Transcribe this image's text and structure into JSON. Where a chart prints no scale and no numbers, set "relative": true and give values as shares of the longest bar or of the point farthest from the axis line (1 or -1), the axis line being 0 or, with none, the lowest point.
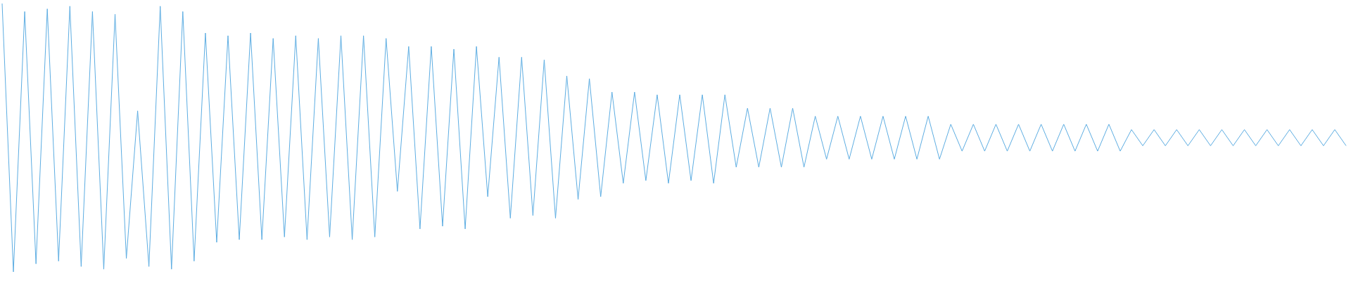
{
  "chart_data": {
    "type": "line",
    "relative": true,
    "tick_labels": false,
    "marker": "none",
    "categories": [
      null,
      null,
      null,
      null,
      null,
      null,
      null,
      null,
      null,
      null,
      null,
      null,
      null,
      null,
      null,
      null,
      null,
      null,
      null,
      null,
      null,
      null,
      null,
      null,
      null,
      null,
      null,
      null,
      null,
      null,
      null,
      null,
      null,
      null,
      null,
      null,
      null,
      null,
      null,
      null,
      null,
      null,
      null,
      null,
      null,
      null,
      null,
      null,
      null,
      null,
      null,
      null,
      null,
      null,
      null,
      null,
      null,
      null,
      null,
      null,
      null,
      null,
      null,
      null,
      null,
      null,
      null,
      null,
      null,
      null,
      null,
      null,
      null,
      null,
      null,
      null,
      null,
      null,
      null,
      null,
      null,
      null,
      null,
      null,
      null,
      null,
      null,
      null,
      null,
      null,
      null,
      null,
      null,
      null,
      null,
      null,
      null,
      null,
      null,
      null,
      null,
      null,
      null,
      null,
      null,
      null,
      null,
      null,
      null,
      null,
      null,
      null,
      null,
      null,
      null,
      null,
      null,
      null,
      null,
      null
    ],
    "series": [
      {
        "color": "#5dade2",
        "values": [
          1.0,
          0.0,
          0.97,
          0.03,
          0.98,
          0.04,
          0.99,
          0.02,
          0.97,
          0.01,
          0.96,
          0.05,
          0.6,
          0.02,
          0.99,
          0.01,
          0.97,
          0.04,
          0.89,
          0.11,
          0.88,
          0.12,
          0.89,
          0.12,
          0.87,
          0.13,
          0.88,
          0.12,
          0.87,
          0.13,
          0.88,
          0.12,
          0.88,
          0.13,
          0.87,
          0.3,
          0.84,
          0.16,
          0.84,
          0.17,
          0.83,
          0.16,
          0.84,
          0.28,
          0.8,
          0.2,
          0.8,
          0.21,
          0.79,
          0.2,
          0.73,
          0.27,
          0.72,
          0.28,
          0.67,
          0.33,
          0.67,
          0.34,
          0.66,
          0.33,
          0.66,
          0.34,
          0.66,
          0.33,
          0.66,
          0.39,
          0.61,
          0.39,
          0.61,
          0.39,
          0.61,
          0.39,
          0.58,
          0.42,
          0.58,
          0.42,
          0.58,
          0.42,
          0.58,
          0.42,
          0.58,
          0.42,
          0.58,
          0.42,
          0.55,
          0.45,
          0.55,
          0.45,
          0.55,
          0.45,
          0.55,
          0.45,
          0.55,
          0.45,
          0.55,
          0.45,
          0.55,
          0.45,
          0.55,
          0.45,
          0.53,
          0.47,
          0.53,
          0.47,
          0.53,
          0.47,
          0.53,
          0.47,
          0.53,
          0.47,
          0.53,
          0.47,
          0.53,
          0.47,
          0.53,
          0.47,
          0.53,
          0.47,
          0.53,
          0.47
        ]
      }
    ]
  }
}
